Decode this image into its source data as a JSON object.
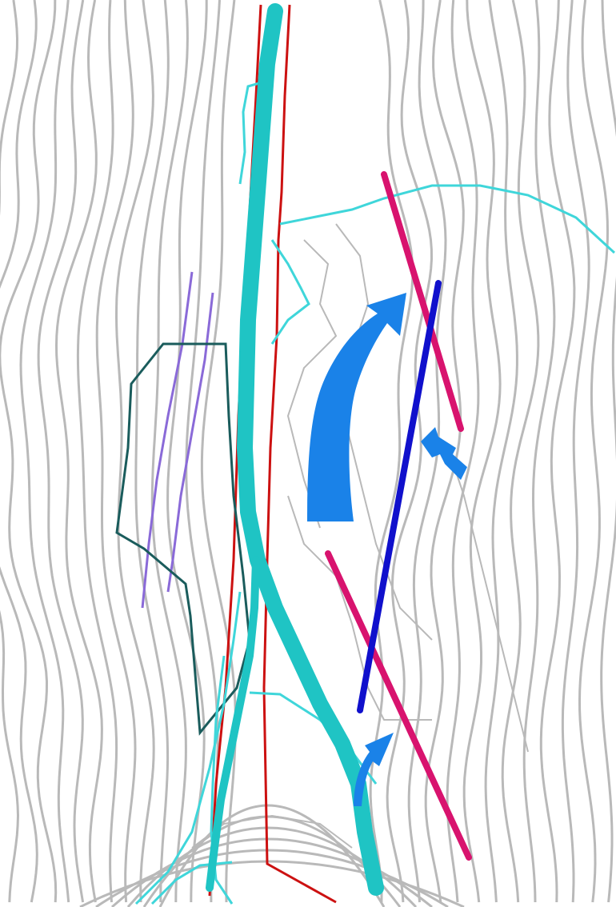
{
  "map": {
    "colors": {
      "background": "#ffffff",
      "contour": "#b9b9b9",
      "river": "#1fc4c4",
      "tributary": "#3fd6da",
      "boundary_red": "#cc1111",
      "zone_outline": "#1a5c5c",
      "purple_lines": "#8a6ad8",
      "fault_magenta": "#d8136e",
      "fault_blue": "#1010cc",
      "flow_arrow": "#1a82e8"
    },
    "layers": {
      "contours": "contour-lines",
      "river": "main-channel",
      "tributaries": "tributary-streams",
      "boundary": "red-boundary-lines",
      "zone": "outlined-zone",
      "purple": "purple-lineaments",
      "faults": "fault-lines",
      "arrows": "flow-arrows"
    }
  }
}
